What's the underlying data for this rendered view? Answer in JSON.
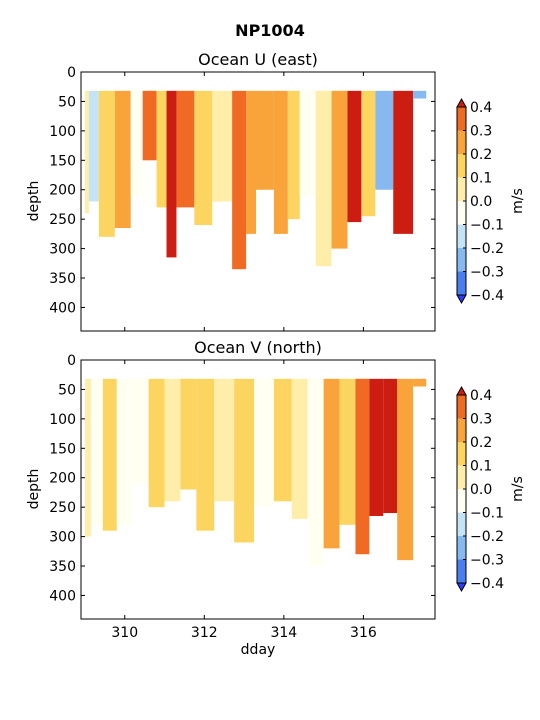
{
  "figure_title": "NP1004",
  "colormap": {
    "levels": [
      -0.4,
      -0.3,
      -0.2,
      -0.1,
      0.0,
      0.1,
      0.2,
      0.3,
      0.4
    ],
    "colors": [
      "#2c3cf5",
      "#4a7ef0",
      "#86b9f0",
      "#c4e3f6",
      "#fffff2",
      "#ffeeaa",
      "#fcd560",
      "#f8a43a",
      "#f06a24",
      "#cc1d12"
    ],
    "under_color": "#2c3cf5",
    "over_color": "#cc1d12",
    "colorbar_label": "m/s",
    "tick_labels": [
      "−0.4",
      "−0.3",
      "−0.2",
      "−0.1",
      "0.0",
      "0.1",
      "0.2",
      "0.3",
      "0.4"
    ]
  },
  "chart_data": [
    {
      "type": "heatmap",
      "title": "Ocean U (east)",
      "xlabel": "",
      "ylabel": "depth",
      "xlim": [
        308.9,
        317.8
      ],
      "ylim": [
        440,
        0
      ],
      "yticks": [
        0,
        50,
        100,
        150,
        200,
        250,
        300,
        350,
        400
      ],
      "xticks": [
        310,
        312,
        314,
        316
      ],
      "xtick_labels_shown": false,
      "top_depth": 32,
      "profiles": [
        {
          "x": 309.0,
          "value": 0.05,
          "bottom": 240
        },
        {
          "x": 309.2,
          "value": -0.12,
          "bottom": 220
        },
        {
          "x": 309.5,
          "value": 0.12,
          "bottom": 280
        },
        {
          "x": 310.0,
          "value": 0.22,
          "bottom": 265
        },
        {
          "x": 310.3,
          "value": -0.08,
          "bottom": 210
        },
        {
          "x": 310.6,
          "value": 0.36,
          "bottom": 150
        },
        {
          "x": 311.0,
          "value": 0.12,
          "bottom": 230
        },
        {
          "x": 311.1,
          "value": 0.45,
          "bottom": 315
        },
        {
          "x": 311.5,
          "value": 0.3,
          "bottom": 230
        },
        {
          "x": 312.0,
          "value": 0.17,
          "bottom": 260
        },
        {
          "x": 312.4,
          "value": 0.08,
          "bottom": 220
        },
        {
          "x": 313.0,
          "value": 0.3,
          "bottom": 335
        },
        {
          "x": 313.1,
          "value": 0.28,
          "bottom": 275
        },
        {
          "x": 313.5,
          "value": 0.22,
          "bottom": 200
        },
        {
          "x": 314.0,
          "value": 0.2,
          "bottom": 275
        },
        {
          "x": 314.2,
          "value": 0.1,
          "bottom": 250
        },
        {
          "x": 314.6,
          "value": -0.06,
          "bottom": 210
        },
        {
          "x": 315.0,
          "value": 0.07,
          "bottom": 330
        },
        {
          "x": 315.4,
          "value": 0.28,
          "bottom": 300
        },
        {
          "x": 315.8,
          "value": 0.4,
          "bottom": 255
        },
        {
          "x": 316.1,
          "value": 0.15,
          "bottom": 245
        },
        {
          "x": 316.5,
          "value": -0.25,
          "bottom": 200
        },
        {
          "x": 317.0,
          "value": 0.45,
          "bottom": 275
        },
        {
          "x": 317.5,
          "value": -0.27,
          "bottom": 45
        }
      ]
    },
    {
      "type": "heatmap",
      "title": "Ocean V (north)",
      "xlabel": "dday",
      "ylabel": "depth",
      "xlim": [
        308.9,
        317.8
      ],
      "ylim": [
        440,
        0
      ],
      "yticks": [
        0,
        50,
        100,
        150,
        200,
        250,
        300,
        350,
        400
      ],
      "xticks": [
        310,
        312,
        314,
        316
      ],
      "xtick_labels_shown": true,
      "top_depth": 32,
      "profiles": [
        {
          "x": 309.0,
          "value": 0.05,
          "bottom": 300
        },
        {
          "x": 309.3,
          "value": -0.06,
          "bottom": 280
        },
        {
          "x": 309.6,
          "value": 0.15,
          "bottom": 290
        },
        {
          "x": 310.0,
          "value": -0.05,
          "bottom": 280
        },
        {
          "x": 310.4,
          "value": -0.1,
          "bottom": 210
        },
        {
          "x": 310.8,
          "value": 0.12,
          "bottom": 250
        },
        {
          "x": 311.2,
          "value": 0.05,
          "bottom": 240
        },
        {
          "x": 311.6,
          "value": 0.15,
          "bottom": 220
        },
        {
          "x": 312.0,
          "value": 0.12,
          "bottom": 290
        },
        {
          "x": 312.5,
          "value": 0.08,
          "bottom": 240
        },
        {
          "x": 313.0,
          "value": 0.15,
          "bottom": 310
        },
        {
          "x": 313.5,
          "value": -0.05,
          "bottom": 250
        },
        {
          "x": 314.0,
          "value": 0.12,
          "bottom": 240
        },
        {
          "x": 314.4,
          "value": 0.08,
          "bottom": 270
        },
        {
          "x": 314.8,
          "value": -0.08,
          "bottom": 350
        },
        {
          "x": 315.2,
          "value": 0.25,
          "bottom": 320
        },
        {
          "x": 315.6,
          "value": 0.18,
          "bottom": 280
        },
        {
          "x": 316.0,
          "value": 0.32,
          "bottom": 330
        },
        {
          "x": 316.3,
          "value": 0.42,
          "bottom": 265
        },
        {
          "x": 316.7,
          "value": 0.45,
          "bottom": 260
        },
        {
          "x": 317.0,
          "value": 0.22,
          "bottom": 340
        },
        {
          "x": 317.5,
          "value": 0.2,
          "bottom": 45
        }
      ]
    }
  ]
}
